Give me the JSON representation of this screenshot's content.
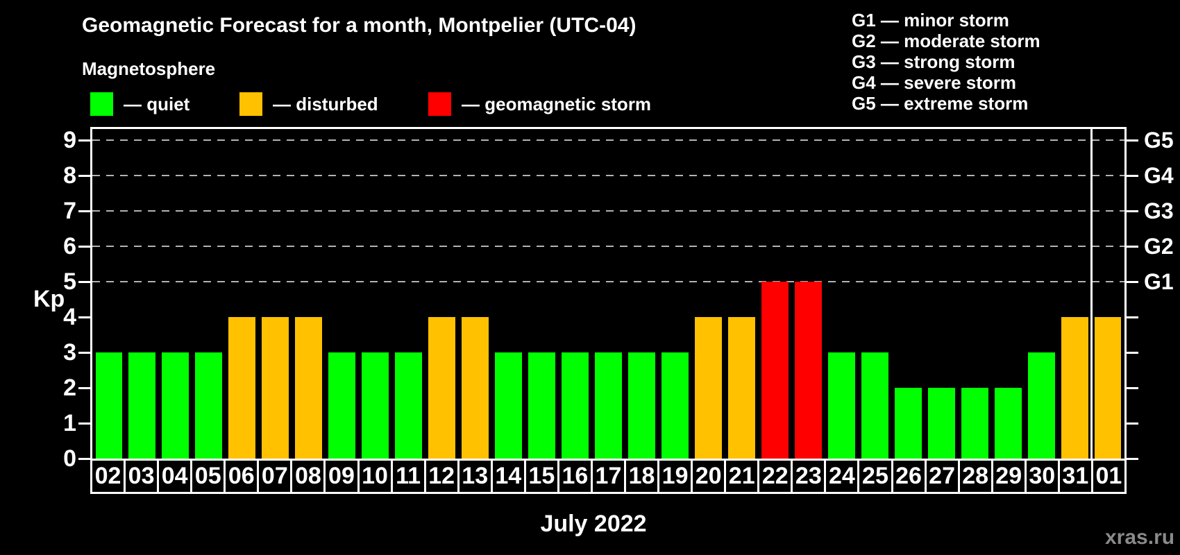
{
  "header": {
    "title": "Geomagnetic Forecast for a month, Montpelier (UTC-04)",
    "subtitle": "Magnetosphere"
  },
  "legend": {
    "items": [
      {
        "name": "quiet",
        "label": "— quiet",
        "color": "#00ff00"
      },
      {
        "name": "disturbed",
        "label": "— disturbed",
        "color": "#ffc100"
      },
      {
        "name": "geomagnetic-storm",
        "label": "— geomagnetic storm",
        "color": "#ff0000"
      }
    ]
  },
  "storm_scale_legend": {
    "items": [
      "G1 — minor storm",
      "G2 — moderate storm",
      "G3 — strong storm",
      "G4 — severe storm",
      "G5 — extreme storm"
    ]
  },
  "chart_data": {
    "type": "bar",
    "title": "Geomagnetic Forecast for a month, Montpelier (UTC-04)",
    "xlabel": "July 2022",
    "ylabel": "Kp",
    "ylim": [
      0,
      9.3
    ],
    "grid": "dashed horizontal gridlines at Kp 5..9 only",
    "categories": [
      "02",
      "03",
      "04",
      "05",
      "06",
      "07",
      "08",
      "09",
      "10",
      "11",
      "12",
      "13",
      "14",
      "15",
      "16",
      "17",
      "18",
      "19",
      "20",
      "21",
      "22",
      "23",
      "24",
      "25",
      "26",
      "27",
      "28",
      "29",
      "30",
      "31",
      "01"
    ],
    "values": [
      3,
      3,
      3,
      3,
      4,
      4,
      4,
      3,
      3,
      3,
      4,
      4,
      3,
      3,
      3,
      3,
      3,
      3,
      4,
      4,
      5,
      5,
      3,
      3,
      2,
      2,
      2,
      2,
      3,
      4,
      4
    ],
    "statuses": [
      "quiet",
      "quiet",
      "quiet",
      "quiet",
      "disturbed",
      "disturbed",
      "disturbed",
      "quiet",
      "quiet",
      "quiet",
      "disturbed",
      "disturbed",
      "quiet",
      "quiet",
      "quiet",
      "quiet",
      "quiet",
      "quiet",
      "disturbed",
      "disturbed",
      "storm",
      "storm",
      "quiet",
      "quiet",
      "quiet",
      "quiet",
      "quiet",
      "quiet",
      "quiet",
      "disturbed",
      "disturbed"
    ],
    "status_colors": {
      "quiet": "#00ff00",
      "disturbed": "#ffc100",
      "storm": "#ff0000"
    },
    "yticks": [
      0,
      1,
      2,
      3,
      4,
      5,
      6,
      7,
      8,
      9
    ],
    "gridline_levels": [
      5,
      6,
      7,
      8,
      9
    ],
    "right_axis": {
      "labels": [
        "G1",
        "G2",
        "G3",
        "G4",
        "G5"
      ],
      "levels": [
        5,
        6,
        7,
        8,
        9
      ]
    },
    "month_separator_boundary_index": 30,
    "colors": {
      "axis": "#ffffff",
      "gridline": "#b3b3b3",
      "background": "#000000"
    }
  },
  "footer": {
    "month_label": "July 2022",
    "watermark": "xras.ru"
  }
}
